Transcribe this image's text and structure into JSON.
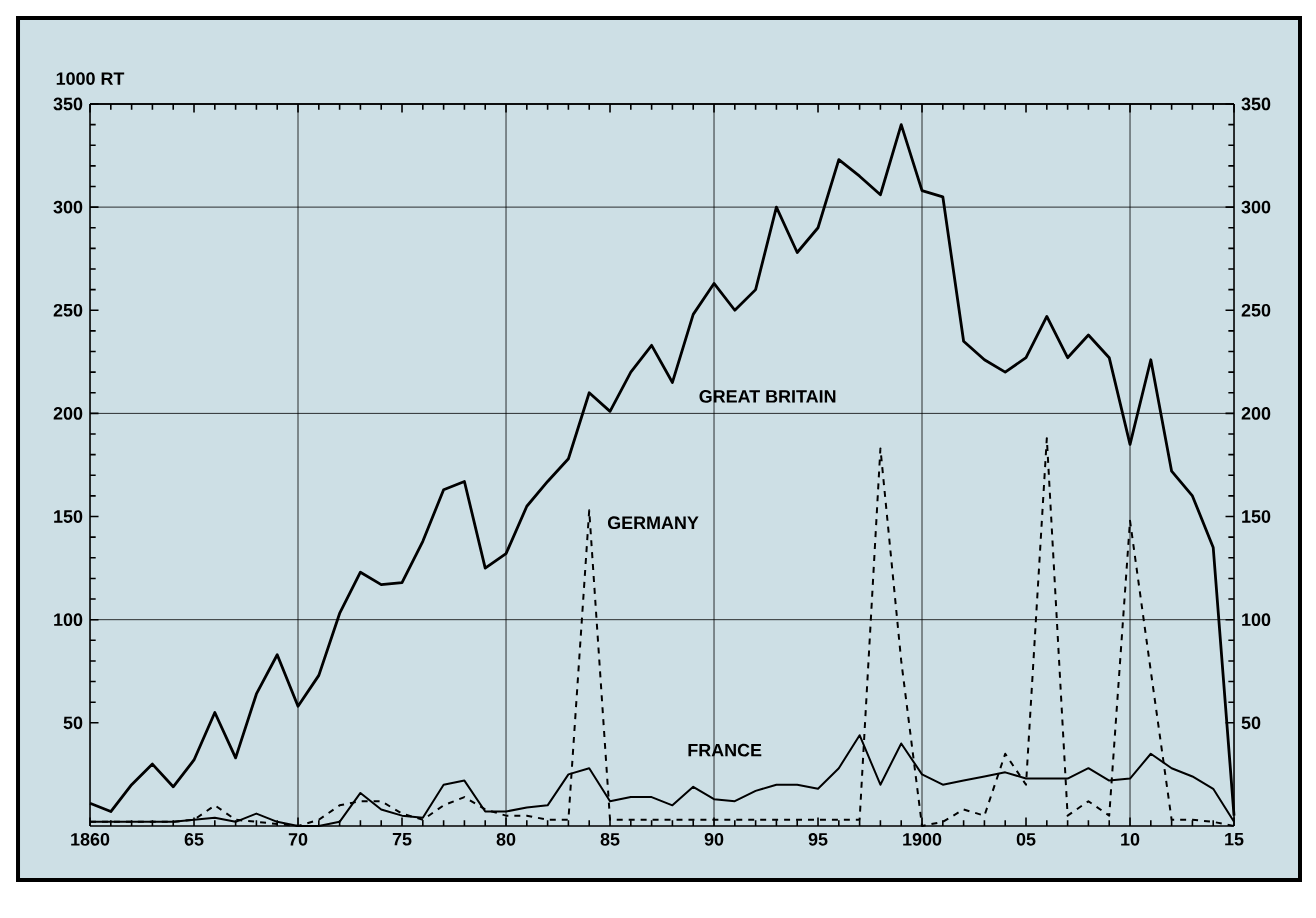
{
  "chart_data": {
    "type": "line",
    "ylabel": "1000 RT",
    "xlim": [
      1860,
      1915
    ],
    "ylim": [
      0,
      350
    ],
    "y2lim": [
      0,
      350
    ],
    "xticks": [
      {
        "value": 1860,
        "label": "1860"
      },
      {
        "value": 1865,
        "label": "65"
      },
      {
        "value": 1870,
        "label": "70"
      },
      {
        "value": 1875,
        "label": "75"
      },
      {
        "value": 1880,
        "label": "80"
      },
      {
        "value": 1885,
        "label": "85"
      },
      {
        "value": 1890,
        "label": "90"
      },
      {
        "value": 1895,
        "label": "95"
      },
      {
        "value": 1900,
        "label": "1900"
      },
      {
        "value": 1905,
        "label": "05"
      },
      {
        "value": 1910,
        "label": "10"
      },
      {
        "value": 1915,
        "label": "15"
      }
    ],
    "yticks": [
      50,
      100,
      150,
      200,
      250,
      300,
      350
    ],
    "y2ticks": [
      50,
      100,
      150,
      200,
      250,
      300,
      350
    ],
    "grid": true,
    "marker": "none",
    "x": [
      1860,
      1861,
      1862,
      1863,
      1864,
      1865,
      1866,
      1867,
      1868,
      1869,
      1870,
      1871,
      1872,
      1873,
      1874,
      1875,
      1876,
      1877,
      1878,
      1879,
      1880,
      1881,
      1882,
      1883,
      1884,
      1885,
      1886,
      1887,
      1888,
      1889,
      1890,
      1891,
      1892,
      1893,
      1894,
      1895,
      1896,
      1897,
      1898,
      1899,
      1900,
      1901,
      1902,
      1903,
      1904,
      1905,
      1906,
      1907,
      1908,
      1909,
      1910,
      1911,
      1912,
      1913,
      1914,
      1915
    ],
    "series": [
      {
        "name": "GREAT BRITAIN",
        "color": "#000000",
        "line_style": "solid",
        "values": [
          11,
          7,
          20,
          30,
          19,
          32,
          55,
          33,
          64,
          83,
          58,
          73,
          103,
          123,
          117,
          118,
          138,
          163,
          167,
          125,
          132,
          155,
          167,
          178,
          210,
          201,
          220,
          233,
          215,
          248,
          263,
          250,
          260,
          300,
          278,
          290,
          323,
          315,
          306,
          340,
          308,
          305,
          235,
          226,
          220,
          227,
          247,
          227,
          238,
          227,
          185,
          226,
          172,
          160,
          135,
          5
        ]
      },
      {
        "name": "GERMANY",
        "color": "#000000",
        "line_style": "dashed",
        "values": [
          2,
          2,
          2,
          2,
          2,
          3,
          10,
          3,
          2,
          1,
          0,
          3,
          10,
          12,
          12,
          6,
          3,
          10,
          14,
          8,
          5,
          5,
          3,
          3,
          153,
          3,
          3,
          3,
          3,
          3,
          3,
          3,
          3,
          3,
          3,
          3,
          3,
          3,
          183,
          80,
          0,
          2,
          8,
          5,
          35,
          20,
          188,
          5,
          12,
          5,
          148,
          75,
          3,
          3,
          2,
          0
        ]
      },
      {
        "name": "FRANCE",
        "color": "#000000",
        "line_style": "solid",
        "values": [
          2,
          2,
          2,
          2,
          2,
          3,
          4,
          2,
          6,
          2,
          0,
          0,
          2,
          16,
          8,
          5,
          4,
          20,
          22,
          7,
          7,
          9,
          10,
          25,
          28,
          12,
          14,
          14,
          10,
          19,
          13,
          12,
          17,
          20,
          20,
          18,
          28,
          44,
          20,
          40,
          25,
          20,
          22,
          24,
          26,
          23,
          23,
          23,
          28,
          22,
          23,
          35,
          28,
          24,
          18,
          2
        ]
      }
    ]
  }
}
